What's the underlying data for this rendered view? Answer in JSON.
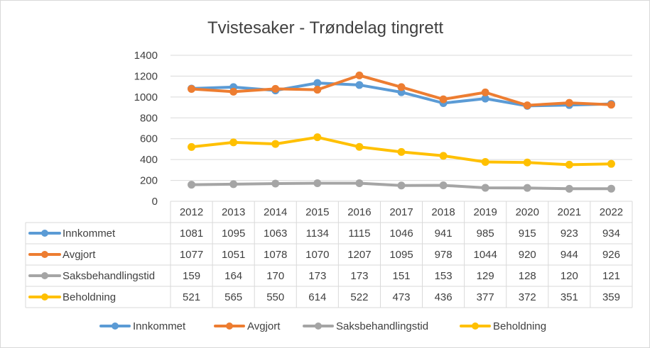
{
  "chart_data": {
    "type": "line",
    "title": "Tvistesaker - Trøndelag tingrett",
    "categories": [
      "2012",
      "2013",
      "2014",
      "2015",
      "2016",
      "2017",
      "2018",
      "2019",
      "2020",
      "2021",
      "2022"
    ],
    "ylim": [
      0,
      1400
    ],
    "yticks": [
      "0",
      "200",
      "400",
      "600",
      "800",
      "1000",
      "1200",
      "1400"
    ],
    "grid": true,
    "legend_position": "bottom",
    "data_table": true,
    "series": [
      {
        "name": "Innkommet",
        "color": "#5B9BD5",
        "values": [
          1081,
          1095,
          1063,
          1134,
          1115,
          1046,
          941,
          985,
          915,
          923,
          934
        ]
      },
      {
        "name": "Avgjort",
        "color": "#ED7D31",
        "values": [
          1077,
          1051,
          1078,
          1070,
          1207,
          1095,
          978,
          1044,
          920,
          944,
          926
        ]
      },
      {
        "name": "Saksbehandlingstid",
        "color": "#A5A5A5",
        "values": [
          159,
          164,
          170,
          173,
          173,
          151,
          153,
          129,
          128,
          120,
          121
        ]
      },
      {
        "name": "Beholdning",
        "color": "#FFC000",
        "values": [
          521,
          565,
          550,
          614,
          522,
          473,
          436,
          377,
          372,
          351,
          359
        ]
      }
    ]
  }
}
